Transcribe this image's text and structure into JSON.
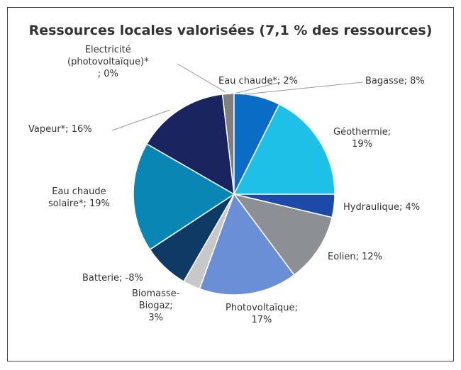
{
  "chart_data": {
    "type": "pie",
    "title": "Ressources locales valorisées (7,1 % des ressources)",
    "values": [
      0,
      2,
      8,
      19,
      4,
      12,
      17,
      3,
      -8,
      19,
      16
    ],
    "value_labels": [
      "Electricité\n(photovoltaïque)*\n; 0%",
      "Eau chaude*; 2%",
      "Bagasse; 8%",
      "Géothermie;\n19%",
      "Hydraulique; 4%",
      "Eolien; 12%",
      "Photovoltaïque;\n17%",
      "Biomasse-\nBiogaz;\n3%",
      "Batterie; -8%",
      "Eau chaude\nsolaire*; 19%",
      "Vapeur*; 16%"
    ],
    "colors": [
      "#555555",
      "#7f7f7f",
      "#0a6cc4",
      "#1fc0e8",
      "#1b4aa8",
      "#8c8f93",
      "#6b8fd6",
      "#c8c8c8",
      "#0f3a66",
      "#0a86b5",
      "#1a2560"
    ]
  }
}
